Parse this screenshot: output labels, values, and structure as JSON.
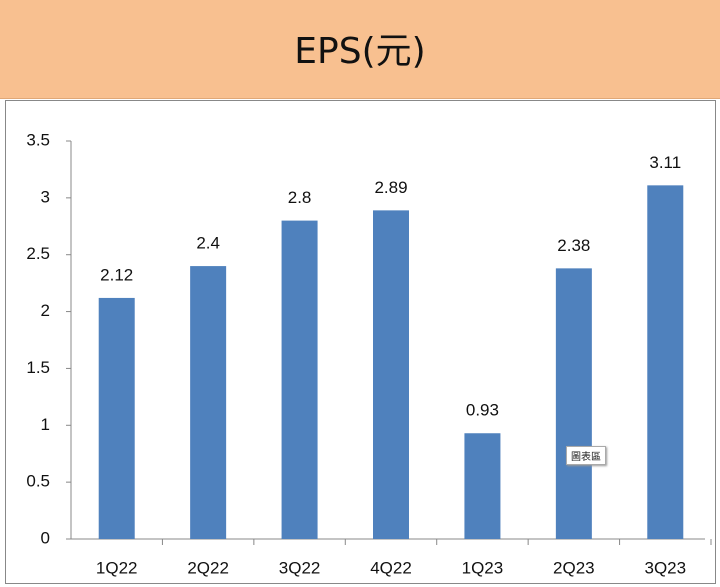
{
  "chart_data": {
    "type": "bar",
    "title": "EPS(元)",
    "categories": [
      "1Q22",
      "2Q22",
      "3Q22",
      "4Q22",
      "1Q23",
      "2Q23",
      "3Q23"
    ],
    "values": [
      2.12,
      2.4,
      2.8,
      2.89,
      0.93,
      2.38,
      3.11
    ],
    "color": "#4f81bd",
    "ylim": [
      0,
      3.5
    ],
    "yticks": [
      0,
      0.5,
      1,
      1.5,
      2,
      2.5,
      3,
      3.5
    ],
    "data_labels": true,
    "grid": false
  },
  "tooltip": "圖表區"
}
